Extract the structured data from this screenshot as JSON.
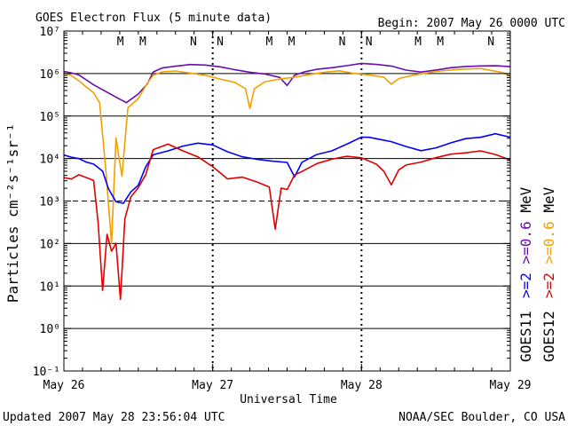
{
  "chart_data": {
    "type": "line",
    "title": "GOES Electron Flux (5 minute data)",
    "begin_label": "Begin: 2007 May 26 0000 UTC",
    "xlabel": "Universal Time",
    "ylabel": "Particles cm⁻²s⁻¹sr⁻¹",
    "x_ticks": [
      "May 26",
      "May 27",
      "May 28",
      "May 29"
    ],
    "xlim_days": [
      0,
      3
    ],
    "y_ticks": [
      "10⁻¹",
      "10⁰",
      "10¹",
      "10²",
      "10³",
      "10⁴",
      "10⁵",
      "10⁶",
      "10⁷"
    ],
    "ylim_log10": [
      -1,
      7
    ],
    "reference_level_log10": 3,
    "local_time_markers": [
      {
        "label": "M",
        "day": 0.38,
        "color": "#c00000"
      },
      {
        "label": "M",
        "day": 0.53,
        "color": "#0000c0"
      },
      {
        "label": "N",
        "day": 0.87,
        "color": "#c00000"
      },
      {
        "label": "N",
        "day": 1.05,
        "color": "#0000c0"
      },
      {
        "label": "M",
        "day": 1.38,
        "color": "#c00000"
      },
      {
        "label": "M",
        "day": 1.53,
        "color": "#0000c0"
      },
      {
        "label": "N",
        "day": 1.87,
        "color": "#c00000"
      },
      {
        "label": "N",
        "day": 2.05,
        "color": "#0000c0"
      },
      {
        "label": "M",
        "day": 2.38,
        "color": "#c00000"
      },
      {
        "label": "M",
        "day": 2.53,
        "color": "#0000c0"
      },
      {
        "label": "N",
        "day": 2.87,
        "color": "#c00000"
      },
      {
        "label": "N",
        "day": 3.05,
        "color": "#0000c0"
      }
    ],
    "series": [
      {
        "name": "GOES11 >=0.6 MeV",
        "color": "#6a0dad",
        "x": [
          0,
          0.05,
          0.1,
          0.15,
          0.2,
          0.28,
          0.35,
          0.42,
          0.5,
          0.56,
          0.6,
          0.66,
          0.75,
          0.85,
          0.95,
          1.05,
          1.15,
          1.25,
          1.35,
          1.45,
          1.5,
          1.55,
          1.62,
          1.7,
          1.8,
          1.9,
          2.0,
          2.1,
          2.2,
          2.3,
          2.4,
          2.5,
          2.6,
          2.7,
          2.8,
          2.9,
          3.0
        ],
        "y": [
          6.05,
          6.0,
          5.95,
          5.85,
          5.75,
          5.6,
          5.45,
          5.3,
          5.5,
          5.75,
          6.05,
          6.15,
          6.18,
          6.2,
          6.18,
          6.15,
          6.1,
          6.05,
          6.0,
          5.9,
          5.7,
          5.95,
          6.05,
          6.12,
          6.15,
          6.18,
          6.22,
          6.2,
          6.18,
          6.1,
          6.05,
          6.08,
          6.12,
          6.15,
          6.18,
          6.2,
          6.18
        ]
      },
      {
        "name": "GOES12 >=0.6 MeV",
        "color": "#f0a000",
        "x": [
          0,
          0.05,
          0.1,
          0.15,
          0.2,
          0.24,
          0.28,
          0.32,
          0.35,
          0.39,
          0.43,
          0.5,
          0.56,
          0.6,
          0.66,
          0.75,
          0.85,
          0.95,
          1.05,
          1.15,
          1.22,
          1.25,
          1.28,
          1.35,
          1.45,
          1.55,
          1.65,
          1.75,
          1.85,
          1.95,
          2.05,
          2.15,
          2.2,
          2.25,
          2.35,
          2.5,
          2.65,
          2.8,
          2.95,
          3.0
        ],
        "y": [
          6.0,
          5.95,
          5.85,
          5.7,
          5.55,
          5.3,
          3.8,
          2.0,
          4.5,
          3.6,
          5.2,
          5.4,
          5.75,
          5.95,
          6.05,
          6.08,
          6.02,
          5.95,
          5.85,
          5.78,
          5.65,
          5.2,
          5.65,
          5.8,
          5.85,
          5.9,
          5.98,
          6.05,
          6.08,
          6.0,
          5.95,
          5.9,
          5.75,
          5.9,
          5.98,
          6.05,
          6.08,
          6.1,
          6.02,
          5.95
        ]
      },
      {
        "name": "GOES11 >=2 MeV",
        "color": "#0000ff",
        "x": [
          0,
          0.05,
          0.1,
          0.15,
          0.2,
          0.26,
          0.3,
          0.35,
          0.4,
          0.45,
          0.5,
          0.55,
          0.6,
          0.7,
          0.8,
          0.9,
          1.0,
          1.1,
          1.2,
          1.3,
          1.4,
          1.5,
          1.55,
          1.6,
          1.7,
          1.8,
          1.9,
          2.0,
          2.05,
          2.1,
          2.2,
          2.3,
          2.4,
          2.5,
          2.6,
          2.7,
          2.8,
          2.9,
          3.0
        ],
        "y": [
          4.1,
          4.05,
          4.0,
          3.9,
          3.85,
          3.7,
          3.3,
          3.0,
          2.95,
          3.2,
          3.35,
          3.8,
          4.1,
          4.2,
          4.3,
          4.35,
          4.3,
          4.15,
          4.05,
          4.0,
          3.95,
          3.9,
          3.55,
          3.9,
          4.1,
          4.2,
          4.35,
          4.5,
          4.48,
          4.45,
          4.4,
          4.3,
          4.2,
          4.25,
          4.35,
          4.45,
          4.5,
          4.6,
          4.52
        ]
      },
      {
        "name": "GOES12 >=2 MeV",
        "color": "#e00000",
        "x": [
          0,
          0.05,
          0.1,
          0.15,
          0.2,
          0.23,
          0.26,
          0.29,
          0.32,
          0.35,
          0.38,
          0.41,
          0.45,
          0.5,
          0.55,
          0.6,
          0.7,
          0.8,
          0.9,
          1.0,
          1.1,
          1.2,
          1.3,
          1.38,
          1.42,
          1.46,
          1.5,
          1.55,
          1.6,
          1.7,
          1.8,
          1.9,
          2.0,
          2.1,
          2.15,
          2.2,
          2.25,
          2.3,
          2.4,
          2.5,
          2.6,
          2.7,
          2.8,
          2.9,
          3.0
        ],
        "y": [
          3.55,
          3.5,
          3.6,
          3.55,
          3.5,
          2.5,
          0.9,
          2.2,
          1.8,
          2.0,
          0.7,
          2.6,
          3.1,
          3.3,
          3.6,
          4.2,
          4.35,
          4.2,
          4.05,
          3.8,
          3.5,
          3.55,
          3.45,
          3.35,
          2.35,
          3.3,
          3.25,
          3.6,
          3.7,
          3.9,
          4.0,
          4.05,
          4.0,
          3.85,
          3.7,
          3.4,
          3.75,
          3.85,
          3.9,
          4.0,
          4.1,
          4.15,
          4.2,
          4.1,
          3.95
        ]
      }
    ],
    "legend": {
      "groups": [
        {
          "label": "GOES11",
          "entries": [
            {
              "text": ">=2",
              "color": "#0000ff"
            },
            {
              "text": ">=0.6",
              "color": "#6a0dad"
            },
            {
              "text": "MeV",
              "color": "#000000"
            }
          ]
        },
        {
          "label": "GOES12",
          "entries": [
            {
              "text": ">=2",
              "color": "#e00000"
            },
            {
              "text": ">=0.6",
              "color": "#f0a000"
            },
            {
              "text": "MeV",
              "color": "#000000"
            }
          ]
        }
      ],
      "placement": "right, rotated vertical"
    },
    "grid": true
  },
  "footer": {
    "updated": "Updated 2007 May 28 23:56:04 UTC",
    "credit": "NOAA/SEC Boulder, CO USA"
  }
}
